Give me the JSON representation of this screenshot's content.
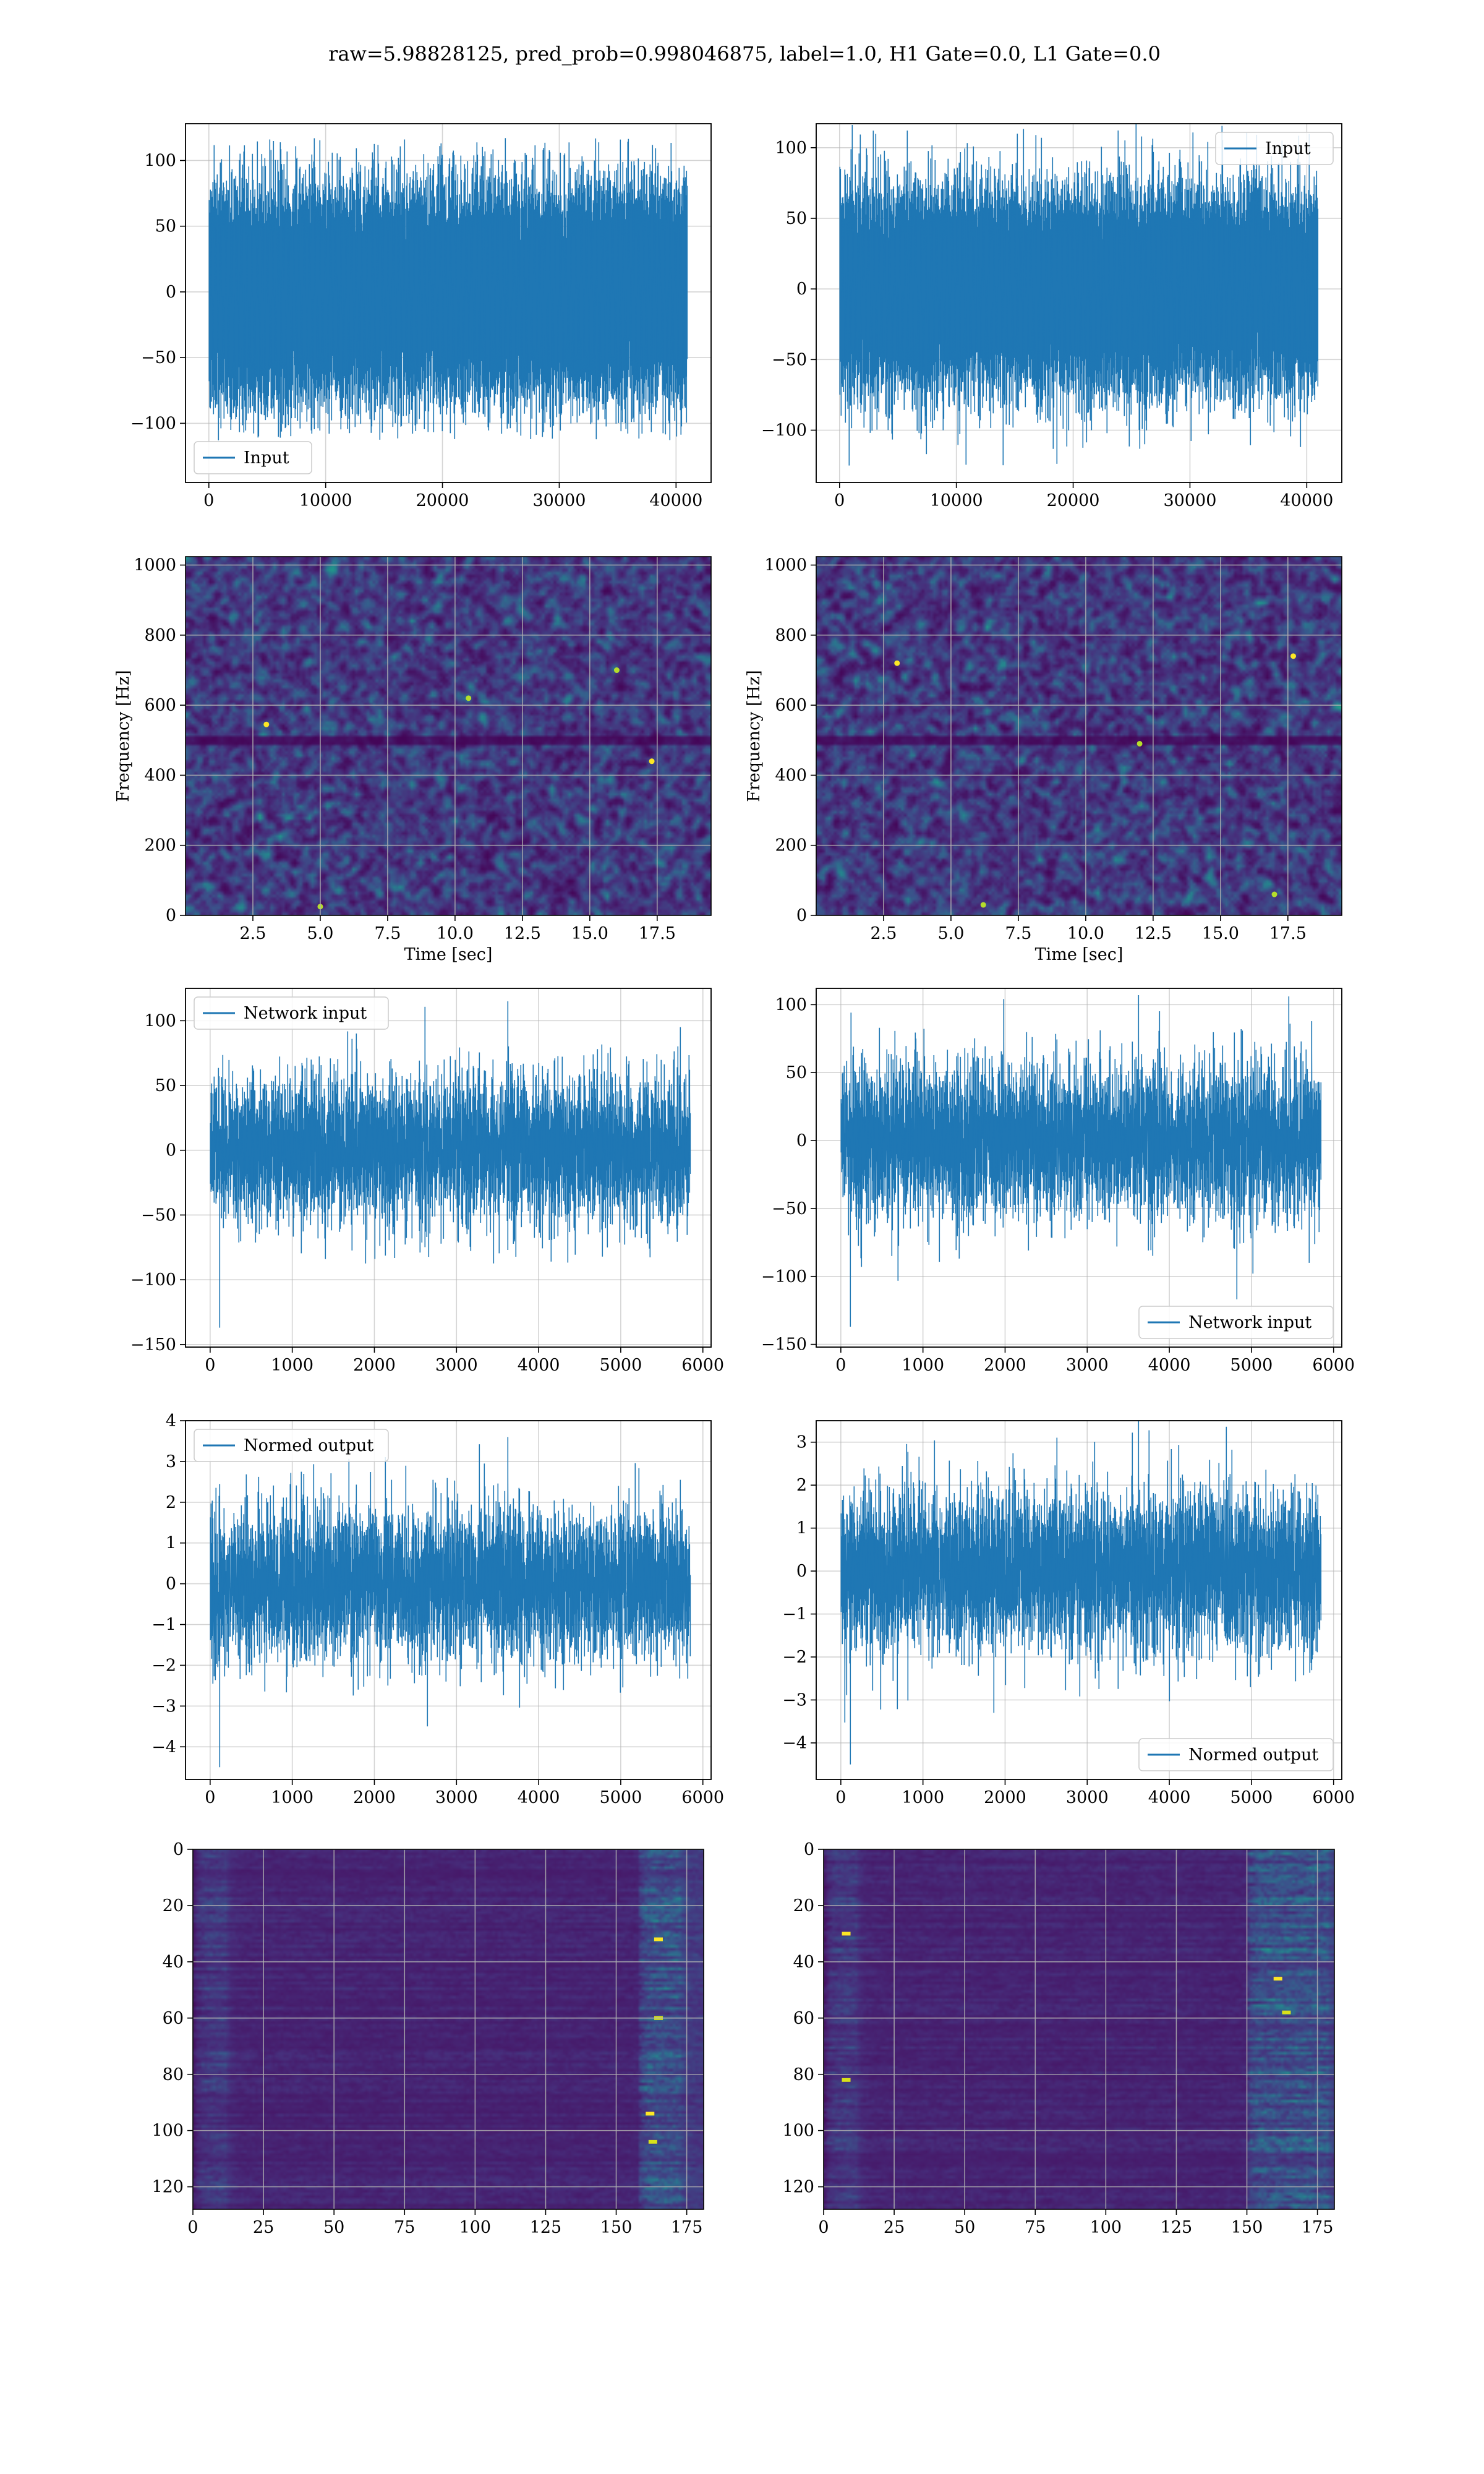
{
  "figure": {
    "suptitle": "raw=5.98828125, pred_prob=0.998046875, label=1.0, H1 Gate=0.0, L1 Gate=0.0"
  },
  "colors": {
    "series": "#1f77b4",
    "grid": "#b0b0b0",
    "viridis": [
      "#440154",
      "#472d7b",
      "#3b528b",
      "#2c728e",
      "#21918c",
      "#28ae80",
      "#5ec962",
      "#addc30",
      "#fde725"
    ]
  },
  "chart_data": [
    {
      "id": "r1l",
      "type": "line",
      "series_name": "Input",
      "legend": "lower-left",
      "xlim": [
        -2000,
        43000
      ],
      "ylim": [
        -145,
        128
      ],
      "xticks": [
        0,
        10000,
        20000,
        30000,
        40000
      ],
      "yticks": [
        -100,
        -50,
        0,
        50,
        100
      ],
      "x_range": [
        0,
        40960
      ],
      "n_points": 40960,
      "envelope": {
        "core_upper": 70,
        "core_lower": -65,
        "max": 117,
        "min": -113
      },
      "grid": true,
      "xlabel": "",
      "ylabel": ""
    },
    {
      "id": "r1r",
      "type": "line",
      "series_name": "Input",
      "legend": "upper-right",
      "xlim": [
        -2000,
        43000
      ],
      "ylim": [
        -137,
        117
      ],
      "xticks": [
        0,
        10000,
        20000,
        30000,
        40000
      ],
      "yticks": [
        -100,
        -50,
        0,
        50,
        100
      ],
      "x_range": [
        0,
        40960
      ],
      "n_points": 40960,
      "envelope": {
        "core_upper": 60,
        "core_lower": -70,
        "max": 117,
        "min": -125
      },
      "grid": true,
      "xlabel": "",
      "ylabel": ""
    },
    {
      "id": "r2l",
      "type": "heatmap",
      "colormap": "viridis",
      "xlim": [
        0,
        19.5
      ],
      "ylim": [
        0,
        1024
      ],
      "xticks": [
        2.5,
        5.0,
        7.5,
        10.0,
        12.5,
        15.0,
        17.5
      ],
      "yticks": [
        0,
        200,
        400,
        600,
        800,
        1000
      ],
      "xtick_labels": [
        "2.5",
        "5.0",
        "7.5",
        "10.0",
        "12.5",
        "15.0",
        "17.5"
      ],
      "xlabel": "Time [sec]",
      "ylabel": "Frequency [Hz]",
      "grid": true,
      "dark_band_hz": 500,
      "hotspots": [
        [
          16.0,
          700
        ],
        [
          3.0,
          545
        ],
        [
          10.5,
          620
        ],
        [
          17.3,
          440
        ],
        [
          5.0,
          25
        ]
      ]
    },
    {
      "id": "r2r",
      "type": "heatmap",
      "colormap": "viridis",
      "xlim": [
        0,
        19.5
      ],
      "ylim": [
        0,
        1024
      ],
      "xticks": [
        2.5,
        5.0,
        7.5,
        10.0,
        12.5,
        15.0,
        17.5
      ],
      "yticks": [
        0,
        200,
        400,
        600,
        800,
        1000
      ],
      "xtick_labels": [
        "2.5",
        "5.0",
        "7.5",
        "10.0",
        "12.5",
        "15.0",
        "17.5"
      ],
      "xlabel": "Time [sec]",
      "ylabel": "Frequency [Hz]",
      "grid": true,
      "dark_band_hz": 505,
      "hotspots": [
        [
          17.0,
          60
        ],
        [
          17.7,
          740
        ],
        [
          6.2,
          30
        ],
        [
          3.0,
          720
        ],
        [
          12.0,
          490
        ]
      ]
    },
    {
      "id": "r3l",
      "type": "line",
      "series_name": "Network input",
      "legend": "upper-left",
      "xlim": [
        -300,
        6100
      ],
      "ylim": [
        -152,
        125
      ],
      "xticks": [
        0,
        1000,
        2000,
        3000,
        4000,
        5000,
        6000
      ],
      "yticks": [
        -150,
        -100,
        -50,
        0,
        50,
        100
      ],
      "x_range": [
        0,
        5850
      ],
      "n_points": 5850,
      "envelope": {
        "core_upper": 55,
        "core_lower": -55,
        "max": 115,
        "min": -137
      },
      "grid": true,
      "xlabel": "",
      "ylabel": ""
    },
    {
      "id": "r3r",
      "type": "line",
      "series_name": "Network input",
      "legend": "lower-right",
      "xlim": [
        -300,
        6100
      ],
      "ylim": [
        -152,
        112
      ],
      "xticks": [
        0,
        1000,
        2000,
        3000,
        4000,
        5000,
        6000
      ],
      "yticks": [
        -150,
        -100,
        -50,
        0,
        50,
        100
      ],
      "x_range": [
        0,
        5850
      ],
      "n_points": 5850,
      "envelope": {
        "core_upper": 55,
        "core_lower": -55,
        "max": 107,
        "min": -137
      },
      "grid": true,
      "xlabel": "",
      "ylabel": ""
    },
    {
      "id": "r4l",
      "type": "line",
      "series_name": "Normed output",
      "legend": "upper-left",
      "xlim": [
        -300,
        6100
      ],
      "ylim": [
        -4.8,
        4.0
      ],
      "xticks": [
        0,
        1000,
        2000,
        3000,
        4000,
        5000,
        6000
      ],
      "yticks": [
        -4,
        -3,
        -2,
        -1,
        0,
        1,
        2,
        3,
        4
      ],
      "x_range": [
        0,
        5850
      ],
      "n_points": 5850,
      "envelope": {
        "core_upper": 1.8,
        "core_lower": -1.8,
        "max": 3.6,
        "min": -4.5
      },
      "grid": true,
      "xlabel": "",
      "ylabel": ""
    },
    {
      "id": "r4r",
      "type": "line",
      "series_name": "Normed output",
      "legend": "lower-right",
      "xlim": [
        -300,
        6100
      ],
      "ylim": [
        -4.85,
        3.5
      ],
      "xticks": [
        0,
        1000,
        2000,
        3000,
        4000,
        5000,
        6000
      ],
      "yticks": [
        -4,
        -3,
        -2,
        -1,
        0,
        1,
        2,
        3
      ],
      "x_range": [
        0,
        5850
      ],
      "n_points": 5850,
      "envelope": {
        "core_upper": 1.8,
        "core_lower": -1.8,
        "max": 3.5,
        "min": -4.5
      },
      "grid": true,
      "xlabel": "",
      "ylabel": ""
    },
    {
      "id": "r5l",
      "type": "heatmap",
      "colormap": "viridis",
      "xlim": [
        0,
        181
      ],
      "ylim": [
        128,
        0
      ],
      "xticks": [
        0,
        25,
        50,
        75,
        100,
        125,
        150,
        175
      ],
      "yticks": [
        0,
        20,
        40,
        60,
        80,
        100,
        120
      ],
      "rows": 128,
      "cols": 181,
      "grid": true,
      "xlabel": "",
      "ylabel": "",
      "bright_columns": [
        158,
        172
      ],
      "hotspots": [
        [
          165,
          32
        ],
        [
          165,
          60
        ],
        [
          162,
          94
        ],
        [
          163,
          104
        ]
      ]
    },
    {
      "id": "r5r",
      "type": "heatmap",
      "colormap": "viridis",
      "xlim": [
        0,
        181
      ],
      "ylim": [
        128,
        0
      ],
      "xticks": [
        0,
        25,
        50,
        75,
        100,
        125,
        150,
        175
      ],
      "yticks": [
        0,
        20,
        40,
        60,
        80,
        100,
        120
      ],
      "rows": 128,
      "cols": 181,
      "grid": true,
      "xlabel": "",
      "ylabel": "",
      "bright_columns": [
        150,
        178
      ],
      "hotspots": [
        [
          161,
          46
        ],
        [
          164,
          58
        ],
        [
          8,
          30
        ],
        [
          8,
          82
        ]
      ]
    }
  ]
}
